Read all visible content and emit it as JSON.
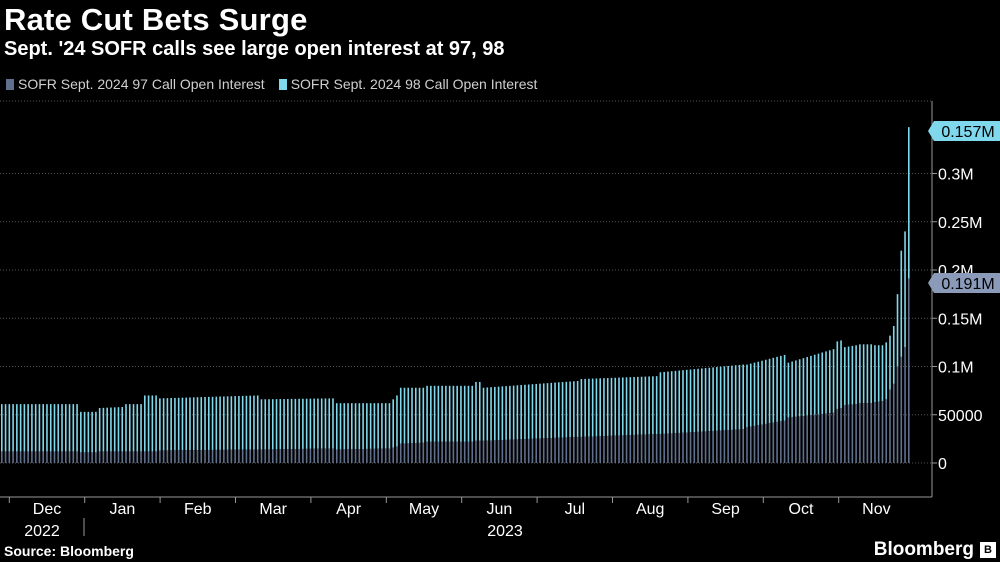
{
  "header": {
    "title": "Rate Cut Bets Surge",
    "subtitle": "Sept. '24 SOFR calls see large open interest at 97, 98"
  },
  "footer": {
    "source": "Source: Bloomberg",
    "brand": "Bloomberg"
  },
  "colors": {
    "series97": "#5f6f8c",
    "series98": "#7fd8ec",
    "grid": "#555555",
    "axis": "#999999"
  },
  "chart_data": {
    "type": "bar",
    "stacked": true,
    "title": "Rate Cut Bets Surge",
    "subtitle": "Sept. '24 SOFR calls see large open interest at 97, 98",
    "legend": [
      "SOFR Sept. 2024 97 Call Open Interest",
      "SOFR Sept. 2024 98 Call Open Interest"
    ],
    "legend_position": "top-left",
    "ylim": [
      0,
      380000
    ],
    "y_ticks": [
      0,
      50000,
      100000,
      150000,
      200000,
      250000,
      300000
    ],
    "y_tick_labels": [
      "0",
      "50000",
      "0.1M",
      "0.15M",
      "0.2M",
      "0.25M",
      "0.3M"
    ],
    "x_tick_labels": [
      "Dec",
      "Jan",
      "Feb",
      "Mar",
      "Apr",
      "May",
      "Jun",
      "Jul",
      "Aug",
      "Sep",
      "Oct",
      "Nov"
    ],
    "x_year_labels": [
      "2022",
      "2023"
    ],
    "end_labels": {
      "series98": "0.157M",
      "series97": "0.191M"
    },
    "grid": true,
    "segments": [
      {
        "n": 21,
        "s97": [
          12000,
          12000
        ],
        "total": [
          61000,
          61000
        ]
      },
      {
        "n": 5,
        "s97": [
          11000,
          11000
        ],
        "total": [
          53000,
          53000
        ]
      },
      {
        "n": 7,
        "s97": [
          12000,
          12000
        ],
        "total": [
          57000,
          58000
        ]
      },
      {
        "n": 5,
        "s97": [
          12000,
          12000
        ],
        "total": [
          61000,
          61000
        ]
      },
      {
        "n": 4,
        "s97": [
          12000,
          12000
        ],
        "total": [
          70000,
          70000
        ]
      },
      {
        "n": 27,
        "s97": [
          13000,
          14000
        ],
        "total": [
          67000,
          70000
        ]
      },
      {
        "n": 20,
        "s97": [
          14000,
          15000
        ],
        "total": [
          66000,
          67000
        ]
      },
      {
        "n": 15,
        "s97": [
          14000,
          15000
        ],
        "total": [
          62000,
          62000
        ]
      },
      {
        "n": 2,
        "s97": [
          16000,
          17000
        ],
        "total": [
          66000,
          70000
        ]
      },
      {
        "n": 7,
        "s97": [
          20000,
          21000
        ],
        "total": [
          78000,
          78000
        ]
      },
      {
        "n": 13,
        "s97": [
          22000,
          22000
        ],
        "total": [
          80000,
          80000
        ]
      },
      {
        "n": 2,
        "s97": [
          23000,
          23000
        ],
        "total": [
          84000,
          84000
        ]
      },
      {
        "n": 26,
        "s97": [
          23000,
          27000
        ],
        "total": [
          78000,
          85000
        ]
      },
      {
        "n": 21,
        "s97": [
          27000,
          30000
        ],
        "total": [
          87000,
          90000
        ]
      },
      {
        "n": 23,
        "s97": [
          30000,
          35000
        ],
        "total": [
          94000,
          102000
        ]
      },
      {
        "n": 11,
        "s97": [
          37000,
          44000
        ],
        "total": [
          102000,
          112000
        ]
      },
      {
        "n": 13,
        "s97": [
          47000,
          52000
        ],
        "total": [
          104000,
          118000
        ]
      },
      {
        "n": 2,
        "s97": [
          56000,
          57000
        ],
        "total": [
          126000,
          127000
        ]
      },
      {
        "n": 4,
        "s97": [
          60000,
          61000
        ],
        "total": [
          120000,
          122000
        ]
      },
      {
        "n": 4,
        "s97": [
          62000,
          62000
        ],
        "total": [
          123000,
          123000
        ]
      },
      {
        "n": 3,
        "s97": [
          63000,
          64000
        ],
        "total": [
          122000,
          122000
        ]
      },
      {
        "n": 1,
        "s97": [
          66000,
          66000
        ],
        "total": [
          125000,
          125000
        ]
      },
      {
        "n": 1,
        "s97": [
          76000,
          76000
        ],
        "total": [
          132000,
          132000
        ]
      },
      {
        "n": 1,
        "s97": [
          82000,
          82000
        ],
        "total": [
          142000,
          142000
        ]
      },
      {
        "n": 1,
        "s97": [
          100000,
          100000
        ],
        "total": [
          175000,
          175000
        ]
      },
      {
        "n": 1,
        "s97": [
          110000,
          110000
        ],
        "total": [
          220000,
          220000
        ]
      },
      {
        "n": 1,
        "s97": [
          120000,
          120000
        ],
        "total": [
          240000,
          240000
        ]
      },
      {
        "n": 1,
        "s97": [
          191000,
          191000
        ],
        "total": [
          348000,
          348000
        ]
      }
    ]
  }
}
